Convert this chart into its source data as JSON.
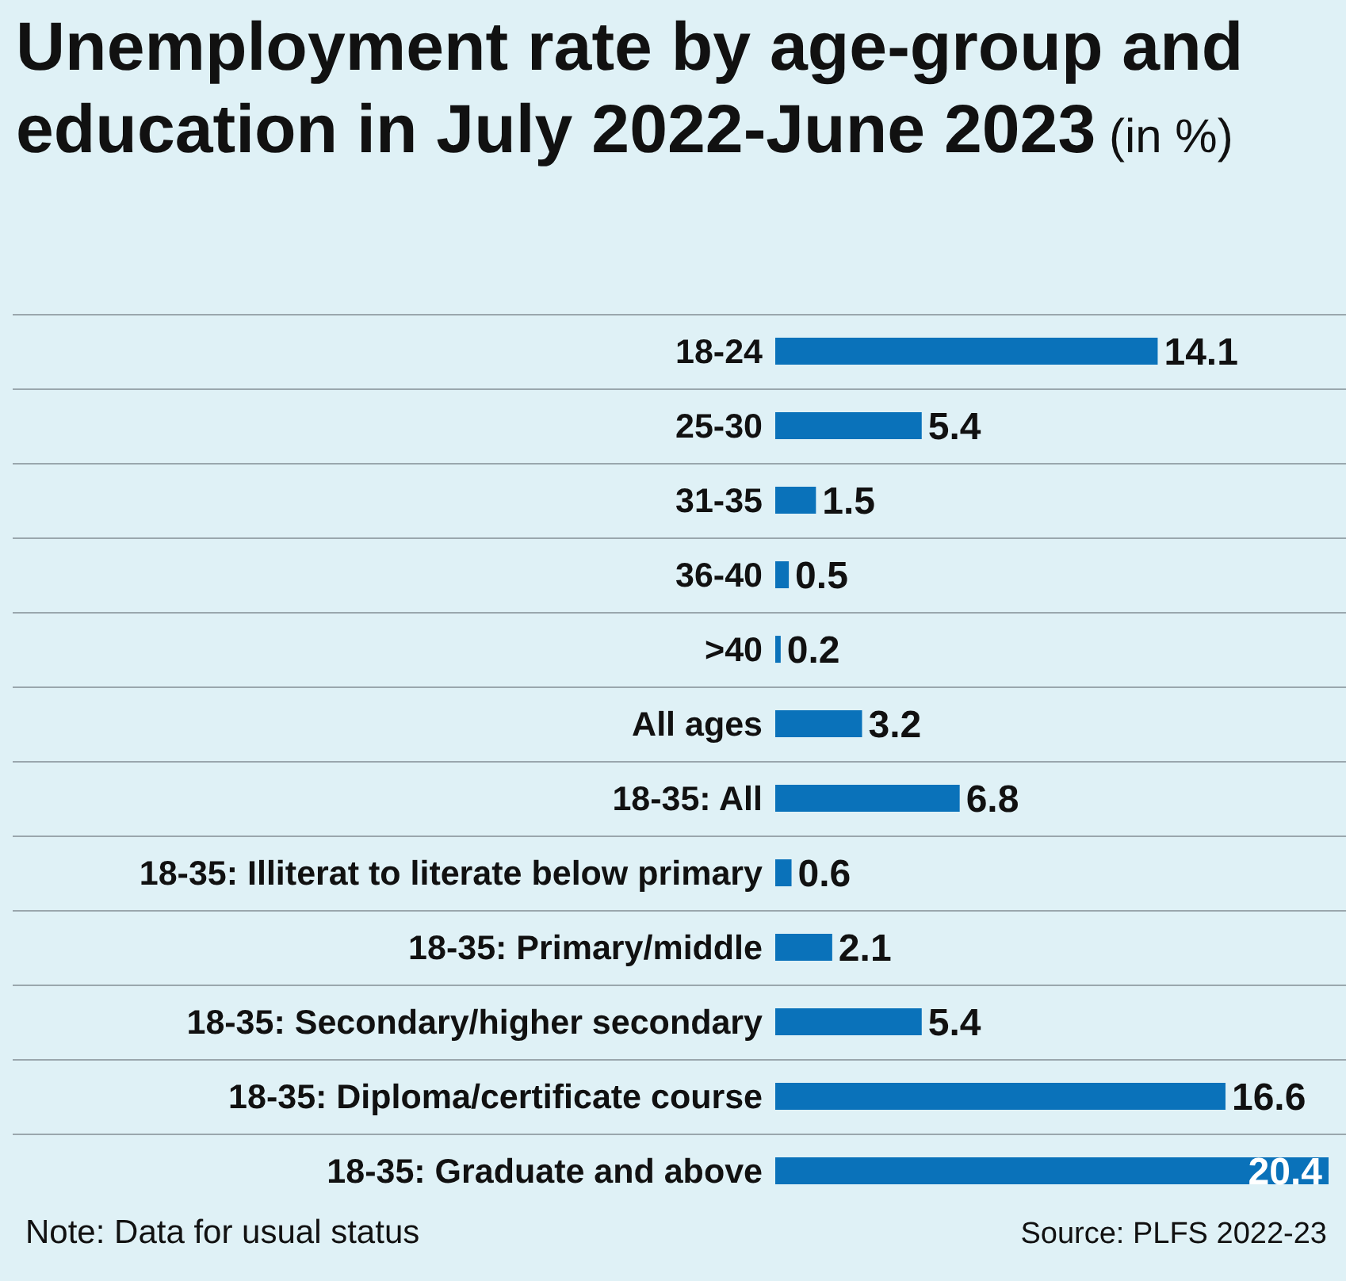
{
  "chart_data": {
    "type": "bar",
    "orientation": "horizontal",
    "title": "Unemployment rate by age-group and education in July 2022-June 2023",
    "subtitle": "(in %)",
    "categories": [
      "18-24",
      "25-30",
      "31-35",
      "36-40",
      ">40",
      "All ages",
      "18-35: All",
      "18-35: Illiterat to literate below primary",
      "18-35: Primary/middle",
      "18-35: Secondary/higher secondary",
      "18-35: Diploma/certificate course",
      "18-35: Graduate and above"
    ],
    "values": [
      14.1,
      5.4,
      1.5,
      0.5,
      0.2,
      3.2,
      6.8,
      0.6,
      2.1,
      5.4,
      16.6,
      20.4
    ],
    "color": "#0a72ba",
    "data_labels": true,
    "grid": "y",
    "annotations": [
      "Note: Data for usual status",
      "Source: PLFS 2022-23"
    ]
  }
}
